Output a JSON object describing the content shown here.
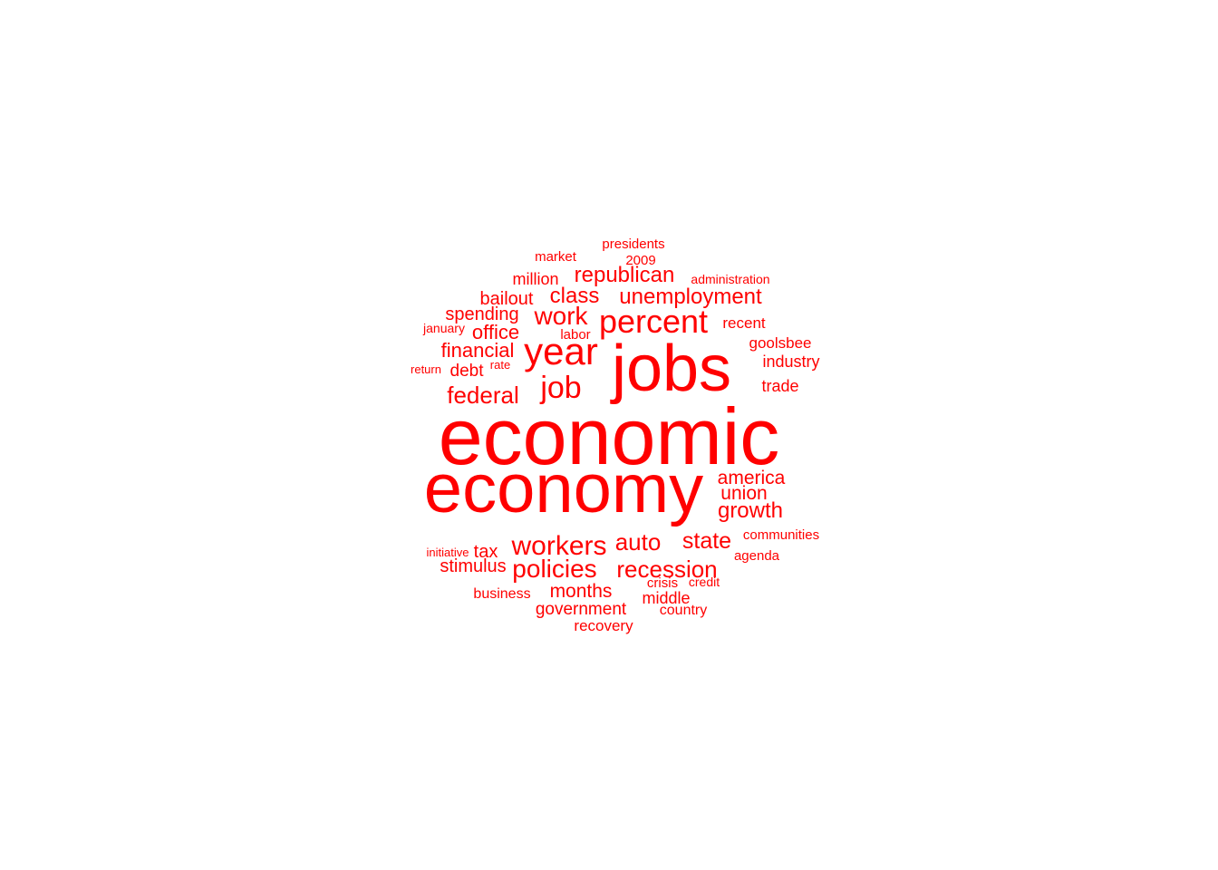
{
  "word_color": "#ff0000",
  "background": "#ffffff",
  "words": [
    "economic",
    "economy",
    "jobs",
    "year",
    "percent",
    "job",
    "workers",
    "policies",
    "recession",
    "federal",
    "work",
    "growth",
    "auto",
    "state",
    "unemployment",
    "republican",
    "class",
    "financial",
    "office",
    "america",
    "union",
    "months",
    "government",
    "spending",
    "bailout",
    "stimulus",
    "tax",
    "debt",
    "middle",
    "million",
    "industry",
    "trade",
    "recent",
    "goolsbee",
    "recovery",
    "business",
    "country",
    "market",
    "presidents",
    "2009",
    "crisis",
    "agenda",
    "communities",
    "labor",
    "administration",
    "january",
    "credit",
    "initiative",
    "return",
    "rate"
  ]
}
